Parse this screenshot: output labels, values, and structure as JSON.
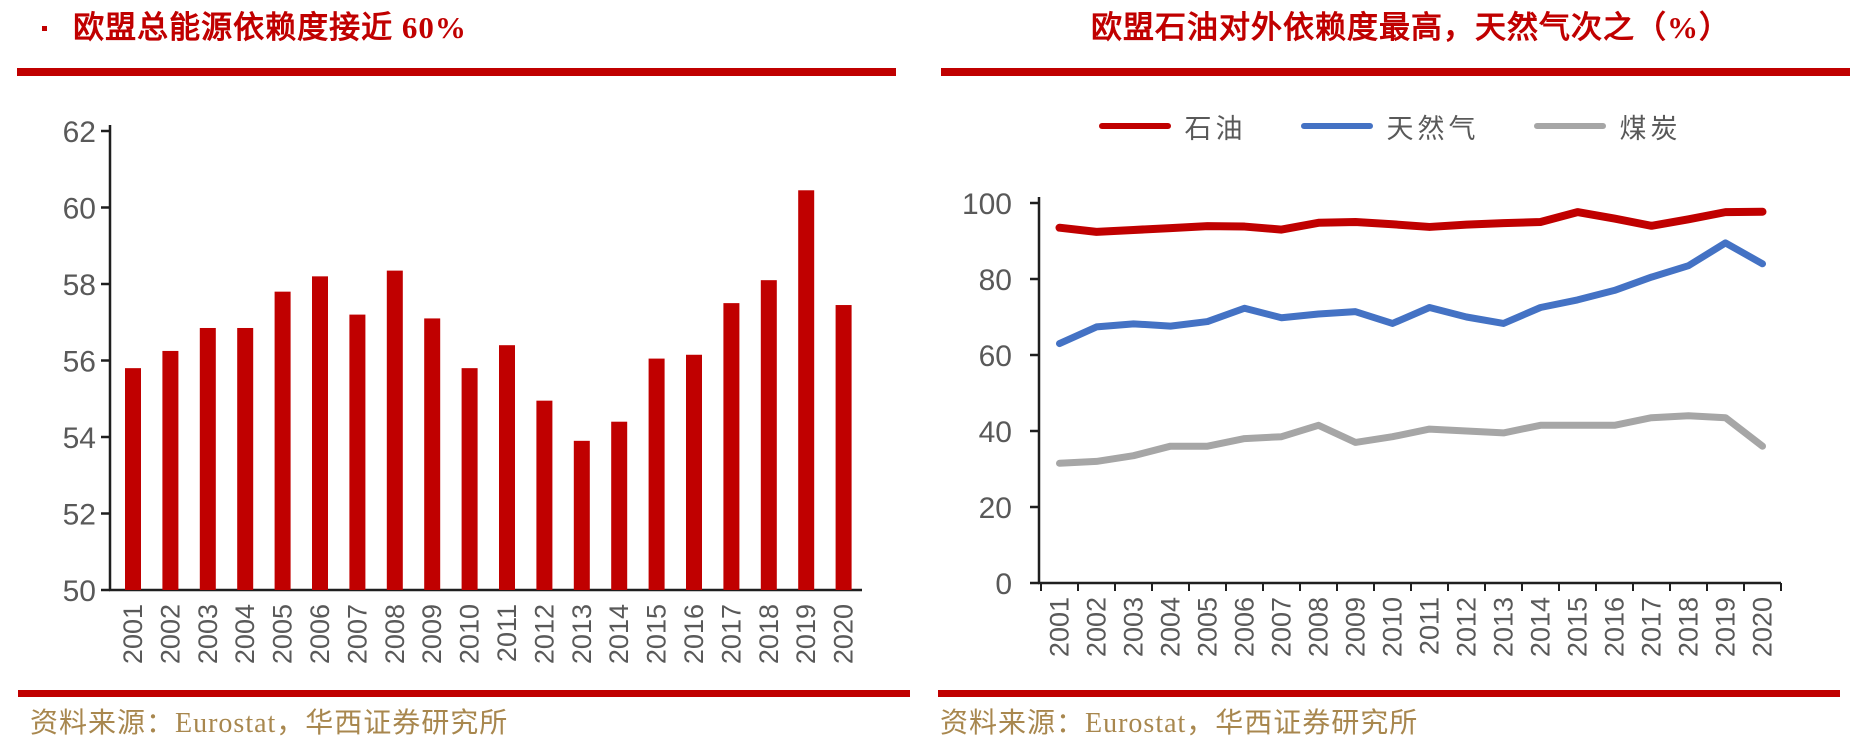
{
  "styles": {
    "accent_red": "#c00000",
    "axis_text_color": "#595959",
    "axis_line_color": "#1f1f1f",
    "source_text_color": "#a8874e",
    "background": "#ffffff",
    "gas_blue": "#4472c4",
    "coal_gray": "#a6a6a6"
  },
  "chart_data": [
    {
      "type": "bar",
      "title": "欧盟总能源依赖度接近 60%",
      "source": "资料来源：Eurostat，华西证券研究所",
      "categories": [
        "2001",
        "2002",
        "2003",
        "2004",
        "2005",
        "2006",
        "2007",
        "2008",
        "2009",
        "2010",
        "2011",
        "2012",
        "2013",
        "2014",
        "2015",
        "2016",
        "2017",
        "2018",
        "2019",
        "2020"
      ],
      "values": [
        55.8,
        56.25,
        56.85,
        56.85,
        57.8,
        58.2,
        57.2,
        58.35,
        57.1,
        55.8,
        56.4,
        54.95,
        53.9,
        54.4,
        56.05,
        56.15,
        57.5,
        58.1,
        60.45,
        57.45
      ],
      "bar_color": "#c00000",
      "ylim": [
        50,
        62
      ],
      "ytick_step": 2,
      "grid": false,
      "legend_position": "none",
      "xlabel": "",
      "ylabel": ""
    },
    {
      "type": "line",
      "title": "欧盟石油对外依赖度最高，天然气次之（%）",
      "source": "资料来源：Eurostat，华西证券研究所",
      "categories": [
        "2001",
        "2002",
        "2003",
        "2004",
        "2005",
        "2006",
        "2007",
        "2008",
        "2009",
        "2010",
        "2011",
        "2012",
        "2013",
        "2014",
        "2015",
        "2016",
        "2017",
        "2018",
        "2019",
        "2020"
      ],
      "series": [
        {
          "name": "石油",
          "color": "#c00000",
          "stroke_width": 8,
          "values": [
            93.5,
            92.4,
            92.9,
            93.4,
            93.9,
            93.8,
            93.0,
            94.8,
            95.0,
            94.4,
            93.7,
            94.3,
            94.7,
            95.0,
            97.6,
            95.9,
            94.0,
            95.7,
            97.6,
            97.7
          ]
        },
        {
          "name": "天然气",
          "color": "#4472c4",
          "stroke_width": 7,
          "values": [
            63.0,
            67.4,
            68.2,
            67.6,
            68.8,
            72.3,
            69.8,
            70.8,
            71.4,
            68.3,
            72.5,
            70.0,
            68.3,
            72.5,
            74.5,
            77.0,
            80.5,
            83.5,
            89.5,
            84.0
          ]
        },
        {
          "name": "煤炭",
          "color": "#a6a6a6",
          "stroke_width": 7,
          "values": [
            31.5,
            32.0,
            33.5,
            36.0,
            36.0,
            38.0,
            38.5,
            41.5,
            37.0,
            38.5,
            40.5,
            40.0,
            39.5,
            41.5,
            41.5,
            41.5,
            43.5,
            44.0,
            43.5,
            36.0
          ]
        }
      ],
      "ylim": [
        0,
        100
      ],
      "ytick_step": 20,
      "grid": false,
      "legend_position": "top",
      "xlabel": "",
      "ylabel": ""
    }
  ]
}
